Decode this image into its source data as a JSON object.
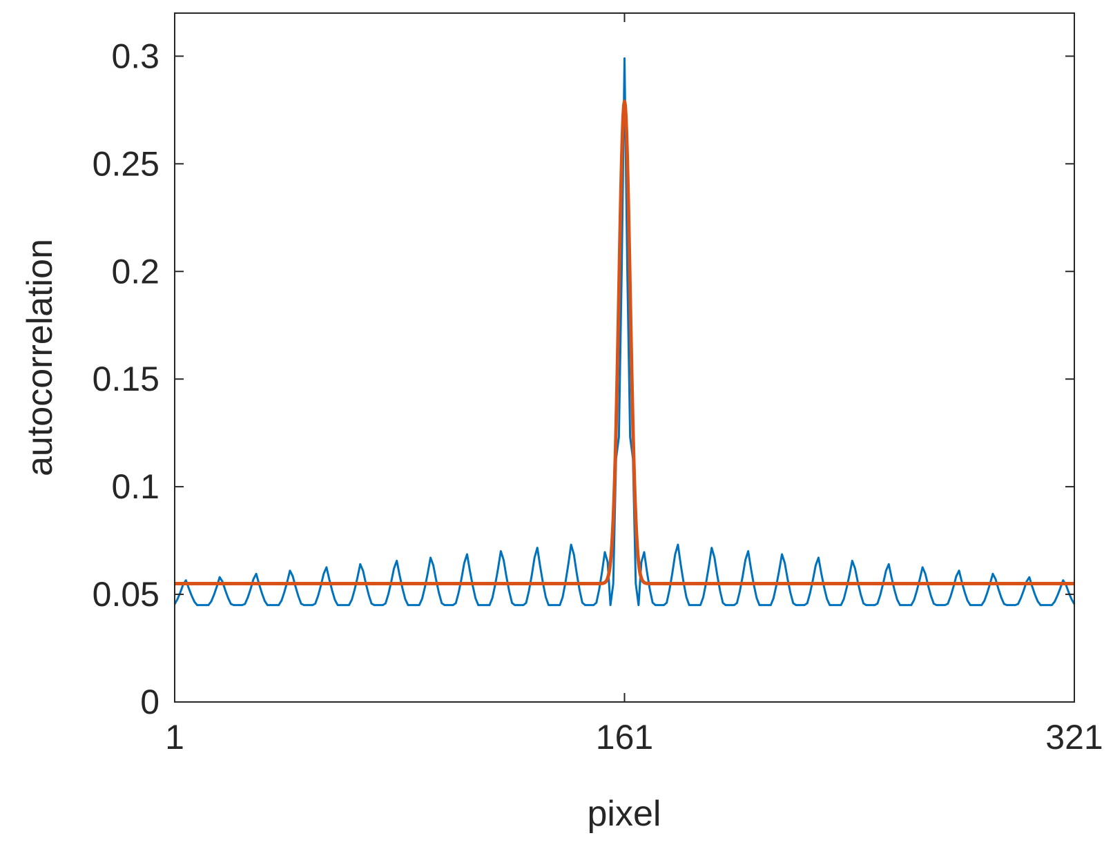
{
  "chart_data": {
    "type": "line",
    "xlabel": "pixel",
    "ylabel": "autocorrelation",
    "xlim": [
      1,
      321
    ],
    "ylim": [
      0,
      0.32
    ],
    "xticks": [
      1,
      161,
      321
    ],
    "xtick_labels": [
      "1",
      "161",
      "321"
    ],
    "yticks": [
      0,
      0.05,
      0.1,
      0.15,
      0.2,
      0.25,
      0.3
    ],
    "ytick_labels": [
      "0",
      "0.05",
      "0.1",
      "0.15",
      "0.2",
      "0.25",
      "0.3"
    ],
    "box": true,
    "grid": false,
    "series": [
      {
        "color": "#0072BD",
        "model": "periodic",
        "base": 0.045,
        "period": 12.5,
        "center": 161,
        "ripple_amp_center": 0.033,
        "ripple_amp_edge": 0.012,
        "peak_x": 161,
        "peak_y": 0.299,
        "near_peak": [
          [
            155,
            0.065
          ],
          [
            156,
            0.045
          ],
          [
            157,
            0.055
          ],
          [
            158,
            0.113
          ],
          [
            159,
            0.123
          ],
          [
            160,
            0.2
          ],
          [
            161,
            0.299
          ],
          [
            162,
            0.2
          ],
          [
            163,
            0.123
          ],
          [
            164,
            0.113
          ],
          [
            165,
            0.055
          ],
          [
            166,
            0.045
          ],
          [
            167,
            0.065
          ]
        ]
      },
      {
        "color": "#D95319",
        "model": "gaussian",
        "baseline": 0.055,
        "peak_x": 161,
        "peak_y": 0.279,
        "width": 2.0
      }
    ]
  }
}
